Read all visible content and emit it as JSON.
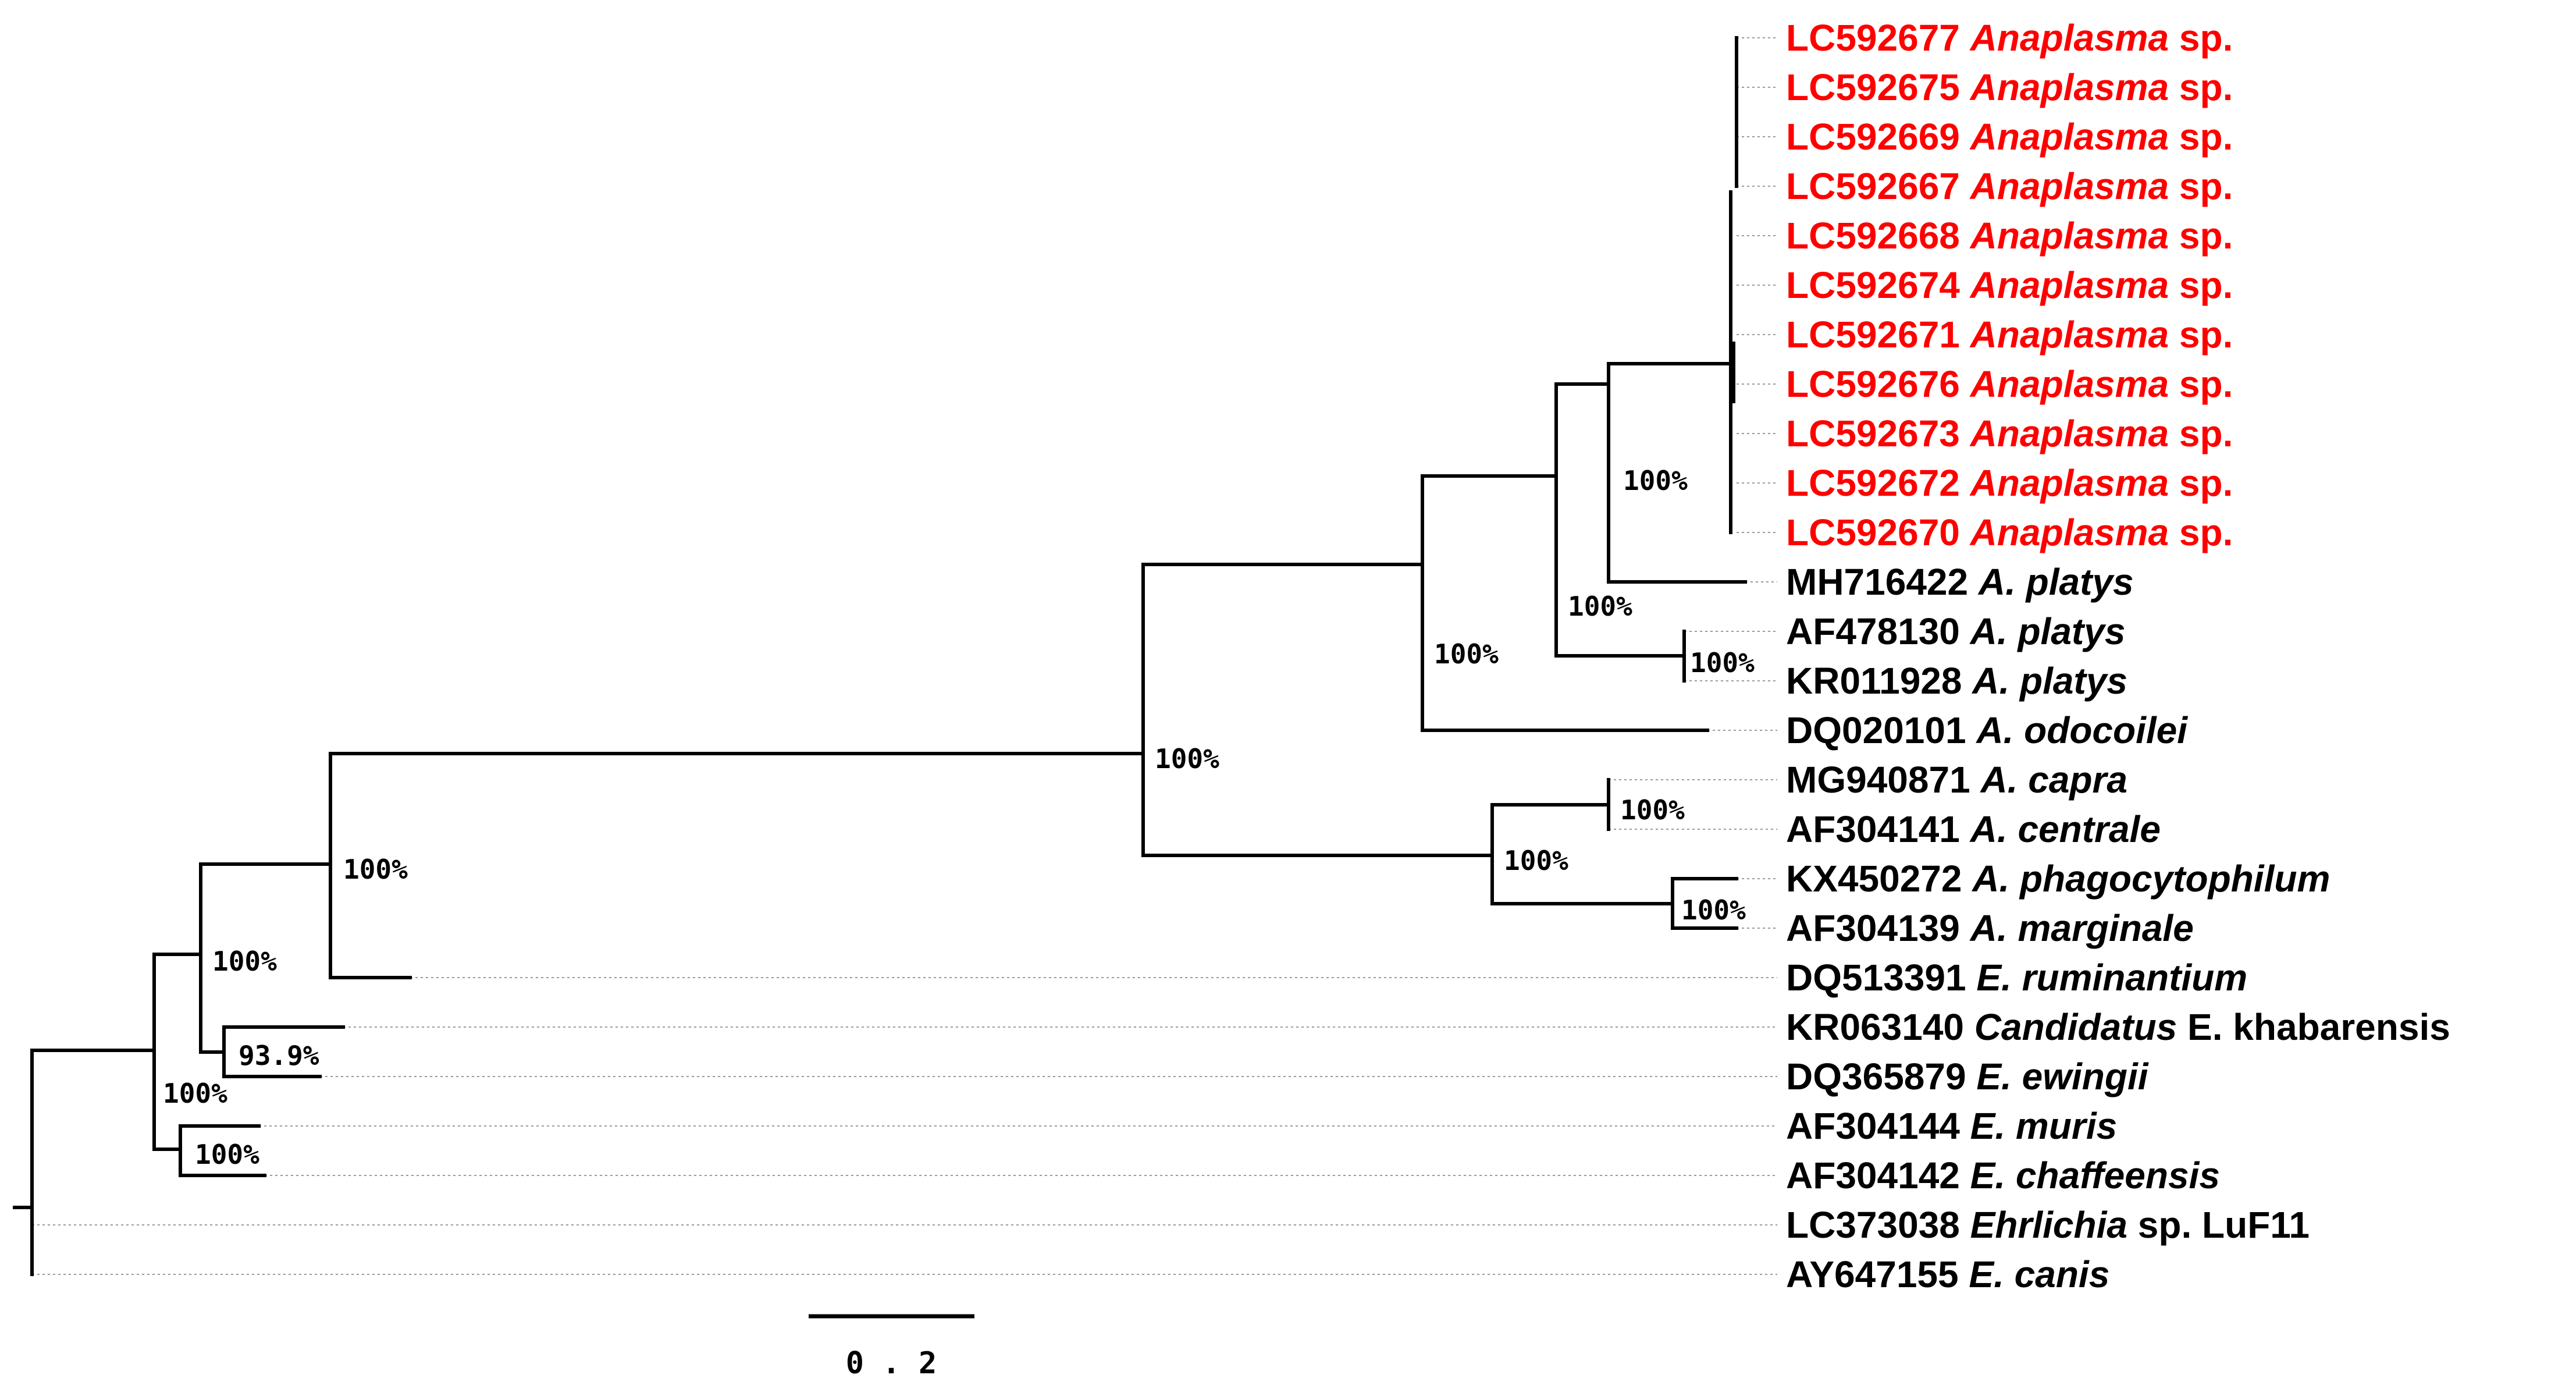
{
  "figure": {
    "type": "phylogenetic-tree",
    "highlight_color": "#ff0000",
    "text_color": "#000000"
  },
  "leaves": [
    {
      "id": "l1",
      "accession": "LC592677",
      "species": "Anaplasma",
      "suffix": " sp.",
      "highlight": true
    },
    {
      "id": "l2",
      "accession": "LC592675",
      "species": "Anaplasma",
      "suffix": " sp.",
      "highlight": true
    },
    {
      "id": "l3",
      "accession": "LC592669",
      "species": "Anaplasma",
      "suffix": " sp.",
      "highlight": true
    },
    {
      "id": "l4",
      "accession": "LC592667",
      "species": "Anaplasma",
      "suffix": " sp.",
      "highlight": true
    },
    {
      "id": "l5",
      "accession": "LC592668",
      "species": "Anaplasma",
      "suffix": " sp.",
      "highlight": true
    },
    {
      "id": "l6",
      "accession": "LC592674",
      "species": "Anaplasma",
      "suffix": " sp.",
      "highlight": true
    },
    {
      "id": "l7",
      "accession": "LC592671",
      "species": "Anaplasma",
      "suffix": " sp.",
      "highlight": true
    },
    {
      "id": "l8",
      "accession": "LC592676",
      "species": "Anaplasma",
      "suffix": " sp.",
      "highlight": true
    },
    {
      "id": "l9",
      "accession": "LC592673",
      "species": "Anaplasma",
      "suffix": " sp.",
      "highlight": true
    },
    {
      "id": "l10",
      "accession": "LC592672",
      "species": "Anaplasma",
      "suffix": " sp.",
      "highlight": true
    },
    {
      "id": "l11",
      "accession": "LC592670",
      "species": "Anaplasma",
      "suffix": " sp.",
      "highlight": true
    },
    {
      "id": "l12",
      "accession": "MH716422",
      "species": "A. platys",
      "suffix": "",
      "highlight": false
    },
    {
      "id": "l13",
      "accession": "AF478130",
      "species": "A. platys",
      "suffix": "",
      "highlight": false
    },
    {
      "id": "l14",
      "accession": "KR011928",
      "species": "A. platys",
      "suffix": "",
      "highlight": false
    },
    {
      "id": "l15",
      "accession": "DQ020101",
      "species": "A. odocoilei",
      "suffix": "",
      "highlight": false
    },
    {
      "id": "l16",
      "accession": "MG940871",
      "species": "A. capra",
      "suffix": "",
      "highlight": false
    },
    {
      "id": "l17",
      "accession": "AF304141",
      "species": "A. centrale",
      "suffix": "",
      "highlight": false
    },
    {
      "id": "l18",
      "accession": "KX450272",
      "species": "A. phagocytophilum",
      "suffix": "",
      "highlight": false
    },
    {
      "id": "l19",
      "accession": "AF304139",
      "species": "A. marginale",
      "suffix": "",
      "highlight": false
    },
    {
      "id": "l20",
      "accession": "DQ513391",
      "species": "E. ruminantium",
      "suffix": "",
      "highlight": false
    },
    {
      "id": "l21",
      "accession": "KR063140",
      "species": "Candidatus",
      "suffix": " E. khabarensis",
      "highlight": false
    },
    {
      "id": "l22",
      "accession": "DQ365879",
      "species": "E. ewingii",
      "suffix": "",
      "highlight": false
    },
    {
      "id": "l23",
      "accession": "AF304144",
      "species": "E. muris",
      "suffix": "",
      "highlight": false
    },
    {
      "id": "l24",
      "accession": "AF304142",
      "species": "E. chaffeensis",
      "suffix": "",
      "highlight": false
    },
    {
      "id": "l25",
      "accession": "LC373038",
      "species": "Ehrlichia",
      "suffix": " sp. LuF11",
      "highlight": false
    },
    {
      "id": "l26",
      "accession": "AY647155",
      "species": "E. canis",
      "suffix": "",
      "highlight": false
    }
  ],
  "bootstrap": [
    {
      "id": "b1",
      "value": "100%"
    },
    {
      "id": "b2",
      "value": "100%"
    },
    {
      "id": "b3",
      "value": "100%"
    },
    {
      "id": "b4",
      "value": "100%"
    },
    {
      "id": "b5",
      "value": "100%"
    },
    {
      "id": "b6",
      "value": "100%"
    },
    {
      "id": "b7",
      "value": "100%"
    },
    {
      "id": "b8",
      "value": "100%"
    },
    {
      "id": "b9",
      "value": "100%"
    },
    {
      "id": "b10",
      "value": "100%"
    },
    {
      "id": "b11",
      "value": "93.9%"
    },
    {
      "id": "b12",
      "value": "100%"
    },
    {
      "id": "b13",
      "value": "100%"
    }
  ],
  "scale_bar": {
    "label": "0 . 2",
    "value": 0.2
  }
}
